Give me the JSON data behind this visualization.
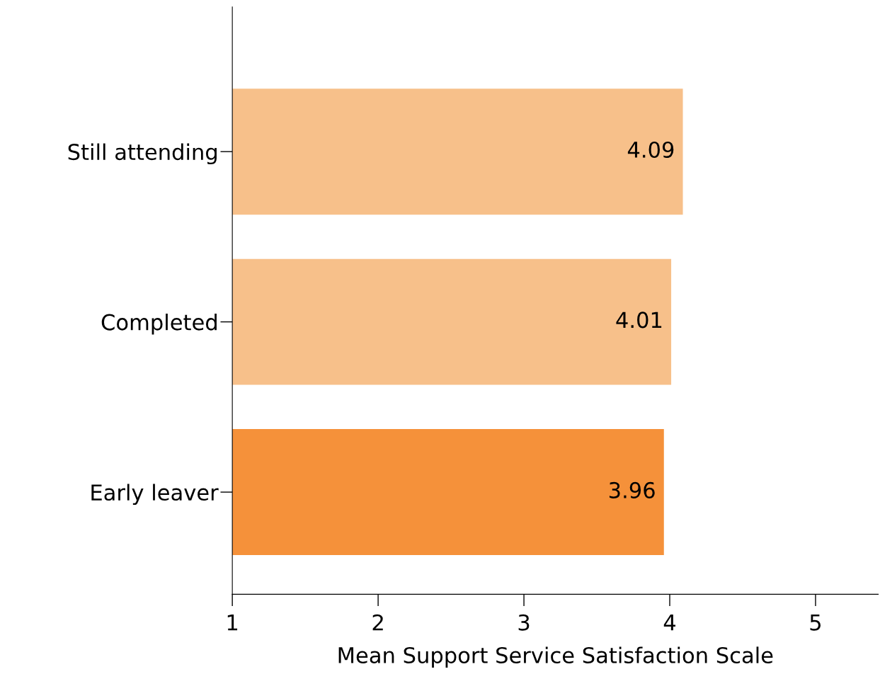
{
  "chart_data": {
    "type": "bar",
    "orientation": "horizontal",
    "xlabel": "Mean Support Service Satisfaction Scale",
    "categories": [
      "Still attending",
      "Completed",
      "Early leaver"
    ],
    "values": [
      4.09,
      4.01,
      3.96
    ],
    "colors": [
      "#f7c08a",
      "#f7c08a",
      "#f5913a"
    ],
    "xlim": [
      1,
      5.43
    ],
    "xticks": [
      1,
      2,
      3,
      4,
      5
    ],
    "data_labels": true,
    "grid": false,
    "legend": false
  }
}
